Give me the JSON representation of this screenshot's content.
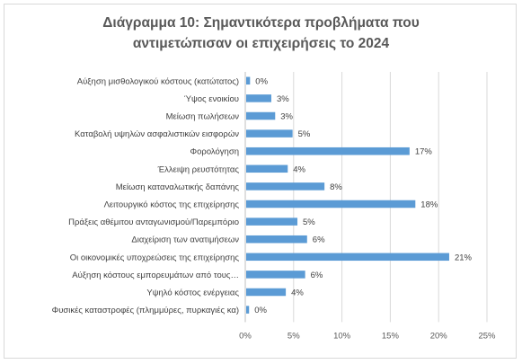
{
  "chart_data": {
    "type": "bar",
    "orientation": "horizontal",
    "title_line1": "Διάγραμμα 10: Σημαντικότερα προβλήματα που",
    "title_line2": "αντιμετώπισαν οι επιχειρήσεις το 2024",
    "categories": [
      "Αύξηση μισθολογικού κόστους (κατώτατος)",
      "Ύψος ενοικίου",
      "Μείωση πωλήσεων",
      "Καταβολή υψηλών ασφαλιστικών εισφορών",
      "Φορολόγηση",
      "Έλλειψη ρευστότητας",
      "Μείωση καταναλωτικής δαπάνης",
      "Λειτουργικό κόστος της επιχείρησης",
      "Πράξεις αθέμιτου ανταγωνισμού/Παρεμπόριο",
      "Διαχείριση των ανατιμήσεων",
      "Οι οικονομικές υποχρεώσεις της επιχείρησης",
      "Αύξηση κόστους εμπορευμάτων από τους…",
      "Υψηλό κόστος ενέργειας",
      "Φυσικές καταστροφές (πλημμύρες, πυρκαγιές κα)"
    ],
    "values": [
      0.4,
      2.6,
      3.0,
      4.8,
      16.9,
      4.3,
      8.1,
      17.5,
      5.3,
      6.3,
      21.0,
      6.1,
      4.1,
      0.3
    ],
    "data_labels": [
      "0%",
      "3%",
      "3%",
      "5%",
      "17%",
      "4%",
      "8%",
      "18%",
      "5%",
      "6%",
      "21%",
      "6%",
      "4%",
      "0%"
    ],
    "x_ticks": [
      "0%",
      "5%",
      "10%",
      "15%",
      "20%",
      "25%"
    ],
    "xlim": [
      0,
      25
    ],
    "grid": true,
    "bar_color": "#5b9bd5"
  }
}
